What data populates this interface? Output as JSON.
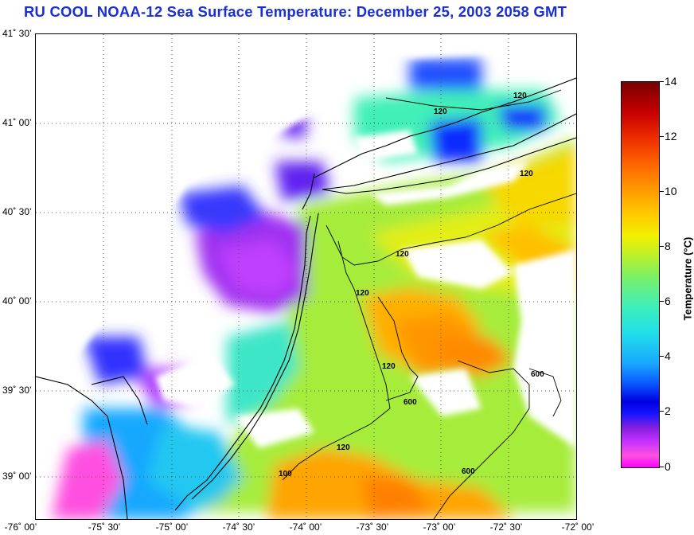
{
  "title": "RU COOL  NOAA-12  Sea Surface Temperature:  December 25, 2003 2058 GMT",
  "latitude_labels": [
    "41˚ 30’",
    "41˚ 00’",
    "40˚ 30’",
    "40˚ 00’",
    "39˚ 30’",
    "39˚ 00’"
  ],
  "longitude_labels": [
    "-76˚ 00’",
    "-75˚ 30’",
    "-75˚ 00’",
    "-74˚ 30’",
    "-74˚ 00’",
    "-73˚ 30’",
    "-73˚ 00’",
    "-72˚ 30’",
    "-72˚ 00’"
  ],
  "colorbar": {
    "label": "Temperature (°C)",
    "ticks": [
      "14",
      "12",
      "10",
      "8",
      "6",
      "4",
      "2",
      "0"
    ],
    "range": [
      0,
      14
    ]
  },
  "contour_labels": [
    "120",
    "120",
    "120",
    "120",
    "120",
    "120",
    "120",
    "600",
    "600",
    "600",
    "100"
  ],
  "colors": {
    "title": "#1a2fd6"
  }
}
